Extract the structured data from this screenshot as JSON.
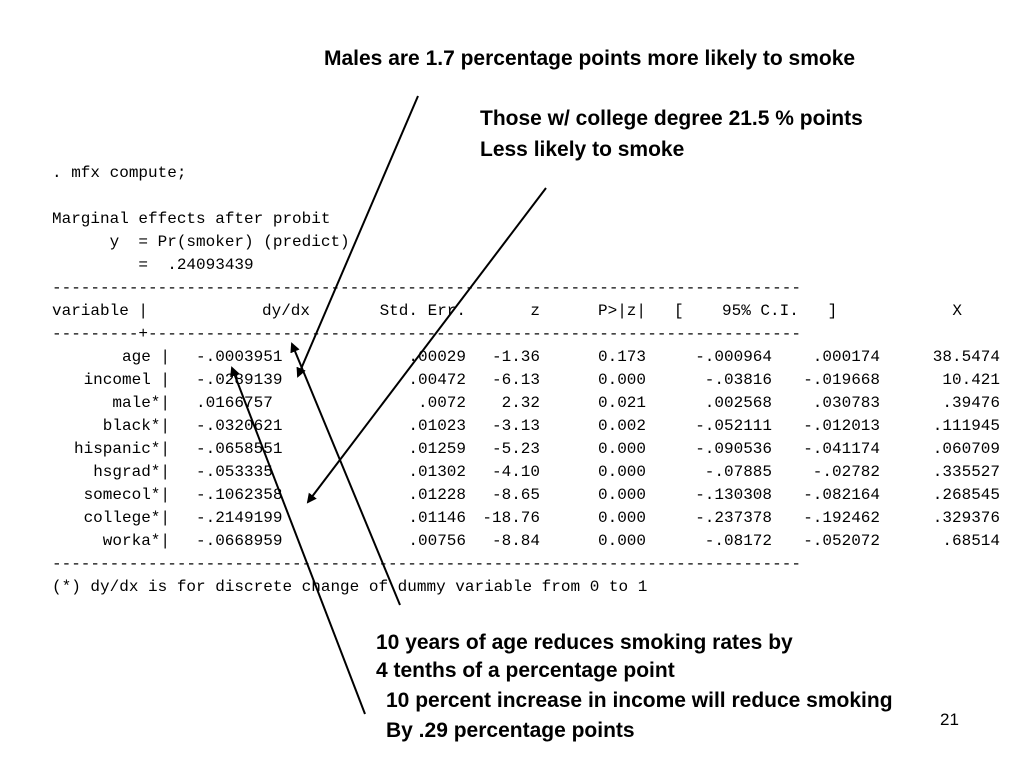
{
  "annotations": {
    "males": "Males are 1.7 percentage points more likely to smoke",
    "college_line1": "Those w/ college degree 21.5 % points",
    "college_line2": "Less likely to smoke",
    "age_line1": "10 years of age reduces smoking rates by",
    "age_line2": "4 tenths of a percentage point",
    "income_line1": "10 percent increase in income will reduce smoking",
    "income_line2": "By .29 percentage points"
  },
  "output": {
    "command": ". mfx compute;",
    "heading": "Marginal effects after probit",
    "y_line": "      y  = Pr(smoker) (predict)",
    "y_value_line": "         =  .24093439",
    "header": {
      "variable": "variable |",
      "dydx": "dy/dx",
      "se": "Std. Err.",
      "z": "z",
      "p": "P>|z|",
      "ci": "[    95% C.I.   ]",
      "x": "X"
    },
    "rows": [
      {
        "variable": "age |",
        "dydx": "-.0003951",
        "se": ".00029",
        "z": "-1.36",
        "p": "0.173",
        "lo": "-.000964",
        "hi": ".000174",
        "x": "38.5474"
      },
      {
        "variable": "incomel |",
        "dydx": "-.0289139",
        "se": ".00472",
        "z": "-6.13",
        "p": "0.000",
        "lo": "-.03816",
        "hi": "-.019668",
        "x": "10.421"
      },
      {
        "variable": "male*|",
        "dydx": ".0166757",
        "se": ".0072",
        "z": "2.32",
        "p": "0.021",
        "lo": ".002568",
        "hi": ".030783",
        "x": ".39476"
      },
      {
        "variable": "black*|",
        "dydx": "-.0320621",
        "se": ".01023",
        "z": "-3.13",
        "p": "0.002",
        "lo": "-.052111",
        "hi": "-.012013",
        "x": ".111945"
      },
      {
        "variable": "hispanic*|",
        "dydx": "-.0658551",
        "se": ".01259",
        "z": "-5.23",
        "p": "0.000",
        "lo": "-.090536",
        "hi": "-.041174",
        "x": ".060709"
      },
      {
        "variable": "hsgrad*|",
        "dydx": "-.053335",
        "se": ".01302",
        "z": "-4.10",
        "p": "0.000",
        "lo": "-.07885",
        "hi": "-.02782",
        "x": ".335527"
      },
      {
        "variable": "somecol*|",
        "dydx": "-.1062358",
        "se": ".01228",
        "z": "-8.65",
        "p": "0.000",
        "lo": "-.130308",
        "hi": "-.082164",
        "x": ".268545"
      },
      {
        "variable": "college*|",
        "dydx": "-.2149199",
        "se": ".01146",
        "z": "-18.76",
        "p": "0.000",
        "lo": "-.237378",
        "hi": "-.192462",
        "x": ".329376"
      },
      {
        "variable": "worka*|",
        "dydx": "-.0668959",
        "se": ".00756",
        "z": "-8.84",
        "p": "0.000",
        "lo": "-.08172",
        "hi": "-.052072",
        "x": ".68514"
      }
    ],
    "footnote": "(*) dy/dx is for discrete change of dummy variable from 0 to 1"
  },
  "page_number": "21"
}
